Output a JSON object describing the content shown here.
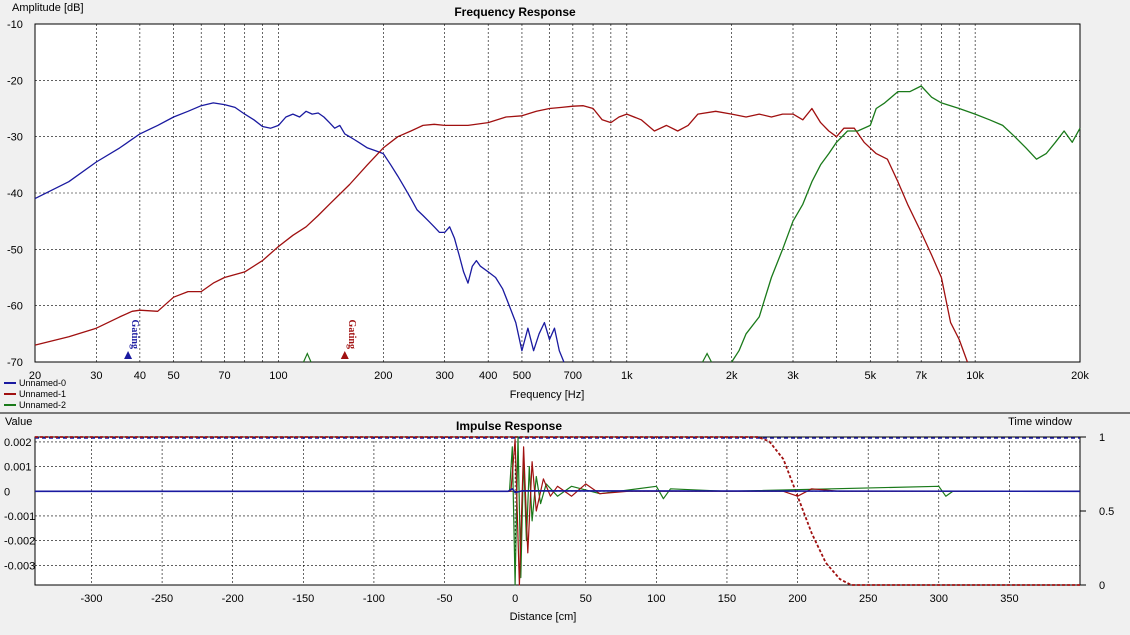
{
  "chart_data": [
    {
      "type": "line",
      "title": "Frequency Response",
      "ylabel": "Amplitude [dB]",
      "xlabel": "Frequency [Hz]",
      "xscale": "log",
      "xlim": [
        20,
        20000
      ],
      "ylim": [
        -70,
        -10
      ],
      "grid": true,
      "x_ticks": [
        20,
        30,
        40,
        50,
        70,
        100,
        200,
        300,
        400,
        500,
        700,
        1000,
        2000,
        3000,
        5000,
        7000,
        10000,
        20000
      ],
      "x_tick_labels": [
        "20",
        "30",
        "40",
        "50",
        "70",
        "100",
        "200",
        "300",
        "400",
        "500",
        "700",
        "1k",
        "2k",
        "3k",
        "5k",
        "7k",
        "10k",
        "20k"
      ],
      "y_ticks": [
        -10,
        -20,
        -30,
        -40,
        -50,
        -60,
        -70
      ],
      "y_tick_labels": [
        "-10",
        "-20",
        "-30",
        "-40",
        "-50",
        "-60",
        "-70"
      ],
      "legend_position": "bottom-left",
      "series": [
        {
          "name": "Unnamed-0",
          "color": "#1a1aa0",
          "points": [
            [
              20,
              -41
            ],
            [
              25,
              -38
            ],
            [
              30,
              -34.5
            ],
            [
              35,
              -32
            ],
            [
              40,
              -29.5
            ],
            [
              45,
              -28
            ],
            [
              50,
              -26.5
            ],
            [
              55,
              -25.5
            ],
            [
              60,
              -24.5
            ],
            [
              65,
              -24
            ],
            [
              70,
              -24.3
            ],
            [
              75,
              -24.8
            ],
            [
              80,
              -26
            ],
            [
              85,
              -27
            ],
            [
              90,
              -28.2
            ],
            [
              95,
              -28.5
            ],
            [
              100,
              -28
            ],
            [
              105,
              -26.5
            ],
            [
              110,
              -26
            ],
            [
              115,
              -26.5
            ],
            [
              120,
              -25.5
            ],
            [
              125,
              -26
            ],
            [
              130,
              -25.8
            ],
            [
              135,
              -26.5
            ],
            [
              140,
              -27.5
            ],
            [
              145,
              -28.5
            ],
            [
              150,
              -28
            ],
            [
              155,
              -29.5
            ],
            [
              160,
              -30
            ],
            [
              165,
              -30.5
            ],
            [
              170,
              -31
            ],
            [
              180,
              -32
            ],
            [
              190,
              -32.5
            ],
            [
              200,
              -33
            ],
            [
              210,
              -35
            ],
            [
              220,
              -37
            ],
            [
              230,
              -39
            ],
            [
              240,
              -41
            ],
            [
              250,
              -43
            ],
            [
              260,
              -44
            ],
            [
              270,
              -45
            ],
            [
              280,
              -46
            ],
            [
              290,
              -47
            ],
            [
              300,
              -47
            ],
            [
              310,
              -46
            ],
            [
              320,
              -48
            ],
            [
              330,
              -51
            ],
            [
              340,
              -54
            ],
            [
              350,
              -56
            ],
            [
              360,
              -53
            ],
            [
              370,
              -52
            ],
            [
              380,
              -53
            ],
            [
              400,
              -54
            ],
            [
              420,
              -55
            ],
            [
              440,
              -57
            ],
            [
              460,
              -60
            ],
            [
              480,
              -63
            ],
            [
              500,
              -68
            ],
            [
              510,
              -66
            ],
            [
              520,
              -64
            ],
            [
              540,
              -68
            ],
            [
              560,
              -65
            ],
            [
              580,
              -63
            ],
            [
              600,
              -66
            ],
            [
              620,
              -64
            ],
            [
              640,
              -68
            ],
            [
              660,
              -70
            ]
          ]
        },
        {
          "name": "Unnamed-1",
          "color": "#a01010",
          "points": [
            [
              20,
              -67
            ],
            [
              25,
              -65.5
            ],
            [
              30,
              -64
            ],
            [
              35,
              -62
            ],
            [
              38,
              -61
            ],
            [
              40,
              -60.8
            ],
            [
              45,
              -61
            ],
            [
              50,
              -58.5
            ],
            [
              55,
              -57.5
            ],
            [
              60,
              -57.5
            ],
            [
              65,
              -56
            ],
            [
              70,
              -55
            ],
            [
              80,
              -54
            ],
            [
              90,
              -52
            ],
            [
              100,
              -49.5
            ],
            [
              110,
              -47.5
            ],
            [
              120,
              -46
            ],
            [
              130,
              -44
            ],
            [
              140,
              -42
            ],
            [
              160,
              -38.5
            ],
            [
              180,
              -35
            ],
            [
              200,
              -32
            ],
            [
              220,
              -30
            ],
            [
              240,
              -29
            ],
            [
              260,
              -28
            ],
            [
              280,
              -27.8
            ],
            [
              300,
              -28
            ],
            [
              350,
              -28
            ],
            [
              400,
              -27.5
            ],
            [
              450,
              -26.5
            ],
            [
              500,
              -26.3
            ],
            [
              550,
              -25.5
            ],
            [
              600,
              -25
            ],
            [
              650,
              -24.8
            ],
            [
              700,
              -24.6
            ],
            [
              750,
              -24.5
            ],
            [
              800,
              -25
            ],
            [
              850,
              -27
            ],
            [
              900,
              -27.5
            ],
            [
              950,
              -26.5
            ],
            [
              1000,
              -26
            ],
            [
              1100,
              -27
            ],
            [
              1200,
              -29
            ],
            [
              1300,
              -28
            ],
            [
              1400,
              -29
            ],
            [
              1500,
              -28
            ],
            [
              1600,
              -26
            ],
            [
              1800,
              -25.5
            ],
            [
              2000,
              -26
            ],
            [
              2200,
              -26.5
            ],
            [
              2400,
              -26
            ],
            [
              2600,
              -26.5
            ],
            [
              2800,
              -26
            ],
            [
              3000,
              -26
            ],
            [
              3200,
              -27
            ],
            [
              3400,
              -25
            ],
            [
              3600,
              -27.5
            ],
            [
              3800,
              -29
            ],
            [
              4000,
              -30
            ],
            [
              4200,
              -28.5
            ],
            [
              4500,
              -28.5
            ],
            [
              4800,
              -31
            ],
            [
              5200,
              -33
            ],
            [
              5600,
              -34
            ],
            [
              6000,
              -38
            ],
            [
              6400,
              -42
            ],
            [
              7000,
              -47
            ],
            [
              7500,
              -51
            ],
            [
              8000,
              -55
            ],
            [
              8500,
              -63
            ],
            [
              9000,
              -66
            ],
            [
              9500,
              -70
            ]
          ]
        },
        {
          "name": "Unnamed-2",
          "color": "#1a7a1a",
          "points": [
            [
              2000,
              -70
            ],
            [
              2100,
              -68
            ],
            [
              2200,
              -65
            ],
            [
              2400,
              -62
            ],
            [
              2600,
              -55
            ],
            [
              2800,
              -50
            ],
            [
              3000,
              -45
            ],
            [
              3200,
              -42
            ],
            [
              3400,
              -38
            ],
            [
              3600,
              -35
            ],
            [
              3800,
              -33
            ],
            [
              4000,
              -31
            ],
            [
              4300,
              -29
            ],
            [
              4600,
              -29
            ],
            [
              5000,
              -28
            ],
            [
              5200,
              -25
            ],
            [
              5500,
              -24
            ],
            [
              6000,
              -22
            ],
            [
              6500,
              -22
            ],
            [
              7000,
              -21
            ],
            [
              7500,
              -23
            ],
            [
              8000,
              -24
            ],
            [
              9000,
              -25
            ],
            [
              10000,
              -26
            ],
            [
              11000,
              -27
            ],
            [
              12000,
              -28
            ],
            [
              13000,
              -30
            ],
            [
              14000,
              -32
            ],
            [
              15000,
              -34
            ],
            [
              16000,
              -33
            ],
            [
              17000,
              -31
            ],
            [
              18000,
              -29
            ],
            [
              19000,
              -31
            ],
            [
              20000,
              -28.5
            ]
          ]
        }
      ],
      "annotations": [
        {
          "text": "Gating",
          "x": 37,
          "color": "#1a1aa0"
        },
        {
          "text": "Gating",
          "x": 155,
          "color": "#a01010"
        }
      ]
    },
    {
      "type": "line",
      "title": "Impulse Response",
      "ylabel": "Value",
      "xlabel": "Distance [cm]",
      "y2label": "Time window",
      "xlim": [
        -340,
        400
      ],
      "ylim": [
        -0.0038,
        0.0022
      ],
      "grid": true,
      "x_ticks": [
        -300,
        -250,
        -200,
        -150,
        -100,
        -50,
        0,
        50,
        100,
        150,
        200,
        250,
        300,
        350
      ],
      "x_tick_labels": [
        "-300",
        "-250",
        "-200",
        "-150",
        "-100",
        "-50",
        "0",
        "50",
        "100",
        "150",
        "200",
        "250",
        "300",
        "350"
      ],
      "y_ticks": [
        0.002,
        0.001,
        0,
        -0.001,
        -0.002,
        -0.003
      ],
      "y_tick_labels": [
        "0.002",
        "0.001",
        "0",
        "-0.001",
        "-0.002",
        "-0.003"
      ],
      "y2_ticks": [
        1,
        0.5,
        0
      ],
      "y2_tick_labels": [
        "1",
        "0.5",
        "0"
      ],
      "series": [
        {
          "name": "Unnamed-0",
          "color": "#1a1aa0",
          "points": [
            [
              -340,
              0
            ],
            [
              -5,
              0
            ],
            [
              -2,
              0.0001
            ],
            [
              0,
              -5e-05
            ],
            [
              5,
              2e-05
            ],
            [
              400,
              0
            ]
          ]
        },
        {
          "name": "Unnamed-1",
          "color": "#a01010",
          "points": [
            [
              -340,
              0
            ],
            [
              -3,
              0
            ],
            [
              0,
              0.0021
            ],
            [
              3,
              -0.0038
            ],
            [
              6,
              0.0018
            ],
            [
              9,
              -0.0025
            ],
            [
              12,
              0.0012
            ],
            [
              15,
              -0.0008
            ],
            [
              20,
              0.0005
            ],
            [
              25,
              -0.0002
            ],
            [
              30,
              0.0002
            ],
            [
              40,
              -0.0002
            ],
            [
              50,
              0.0003
            ],
            [
              60,
              -0.0001
            ],
            [
              80,
              0
            ],
            [
              100,
              0
            ],
            [
              190,
              0
            ],
            [
              200,
              -0.0002
            ],
            [
              210,
              0.0001
            ],
            [
              230,
              0
            ],
            [
              300,
              0
            ],
            [
              400,
              0
            ]
          ]
        },
        {
          "name": "Unnamed-2",
          "color": "#1a7a1a",
          "points": [
            [
              -340,
              0
            ],
            [
              -4,
              0
            ],
            [
              -2,
              0.0018
            ],
            [
              0,
              -0.0038
            ],
            [
              2,
              0.0022
            ],
            [
              4,
              -0.0035
            ],
            [
              6,
              0.0014
            ],
            [
              8,
              -0.002
            ],
            [
              10,
              0.001
            ],
            [
              12,
              -0.0012
            ],
            [
              15,
              0.0006
            ],
            [
              18,
              -0.0005
            ],
            [
              22,
              0.0003
            ],
            [
              30,
              -0.0002
            ],
            [
              40,
              0.0002
            ],
            [
              60,
              -0.0001
            ],
            [
              100,
              0.0002
            ],
            [
              105,
              -0.0003
            ],
            [
              110,
              0.0001
            ],
            [
              150,
              0
            ],
            [
              300,
              0.0002
            ],
            [
              305,
              -0.0002
            ],
            [
              310,
              0
            ],
            [
              400,
              0
            ]
          ]
        }
      ],
      "time_window": {
        "color": "#1a1aa0",
        "window_color": "#a01010",
        "points": [
          [
            -340,
            1
          ],
          [
            172,
            1
          ],
          [
            180,
            0.97
          ],
          [
            190,
            0.85
          ],
          [
            200,
            0.6
          ],
          [
            210,
            0.35
          ],
          [
            220,
            0.15
          ],
          [
            230,
            0.04
          ],
          [
            238,
            0
          ],
          [
            400,
            0
          ]
        ]
      }
    }
  ]
}
